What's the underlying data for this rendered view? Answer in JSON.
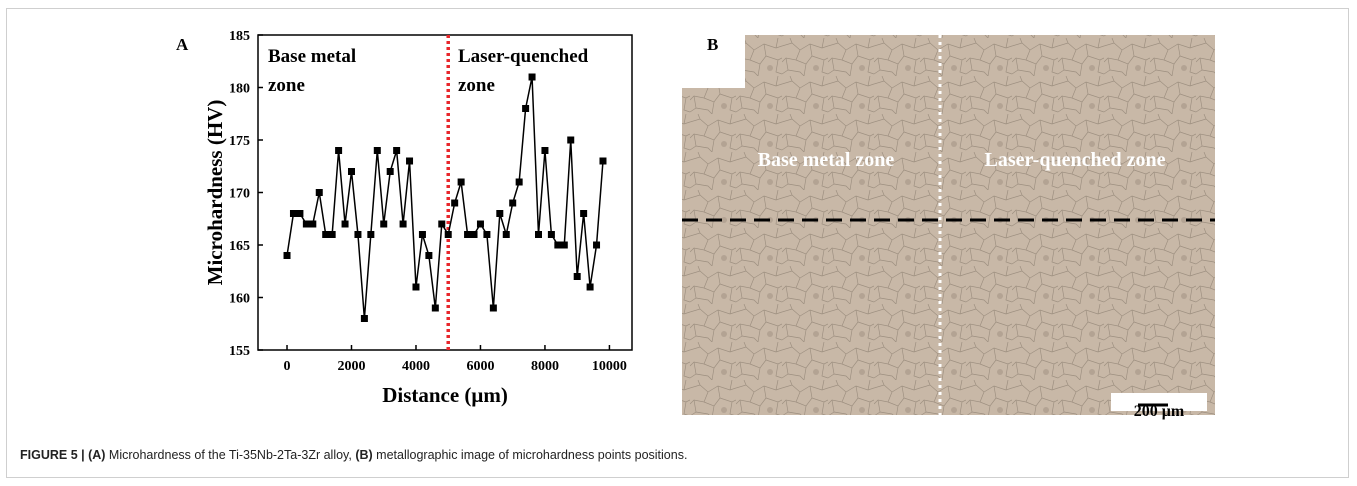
{
  "chart_data": {
    "type": "line",
    "x_label": "Distance (μm)",
    "y_label": "Microhardness (HV)",
    "x": [
      0,
      200,
      400,
      600,
      800,
      1000,
      1200,
      1400,
      1600,
      1800,
      2000,
      2200,
      2400,
      2600,
      2800,
      3000,
      3200,
      3400,
      3600,
      3800,
      4000,
      4200,
      4400,
      4600,
      4800,
      5000,
      5200,
      5400,
      5600,
      5800,
      6000,
      6200,
      6400,
      6600,
      6800,
      7000,
      7200,
      7400,
      7600,
      7800,
      8000,
      8200,
      8400,
      8600,
      8800,
      9000,
      9200,
      9400,
      9600,
      9800
    ],
    "values": [
      164,
      168,
      168,
      167,
      167,
      170,
      166,
      166,
      174,
      167,
      172,
      166,
      158,
      166,
      174,
      167,
      172,
      174,
      167,
      173,
      161,
      166,
      164,
      159,
      167,
      166,
      169,
      171,
      166,
      166,
      167,
      166,
      159,
      168,
      166,
      169,
      171,
      178,
      181,
      166,
      174,
      166,
      165,
      165,
      175,
      162,
      168,
      161,
      165,
      173
    ],
    "color": "#000000",
    "marker": "square",
    "xlim": [
      -900,
      10700
    ],
    "ylim": [
      155,
      185
    ],
    "xticks": [
      0,
      2000,
      4000,
      6000,
      8000,
      10000
    ],
    "yticks": [
      155,
      160,
      165,
      170,
      175,
      180,
      185
    ],
    "vline": {
      "x": 5000,
      "color": "#e8262b"
    },
    "annotations": [
      {
        "lines": [
          "Base metal",
          "zone"
        ]
      },
      {
        "lines": [
          "Laser-quenched",
          "zone"
        ]
      }
    ]
  },
  "panel_a_label": "A",
  "panel_b": {
    "label": "B",
    "left_zone": "Base metal zone",
    "right_zone": "Laser-quenched zone",
    "scale_bar": "200 μm"
  },
  "caption": {
    "parts": [
      {
        "text": "FIGURE 5 | (A)",
        "bold": true
      },
      {
        "text": " Microhardness of the Ti-35Nb-2Ta-3Zr alloy, ",
        "bold": false
      },
      {
        "text": "(B)",
        "bold": true
      },
      {
        "text": " metallographic image of microhardness points positions.",
        "bold": false
      }
    ]
  }
}
